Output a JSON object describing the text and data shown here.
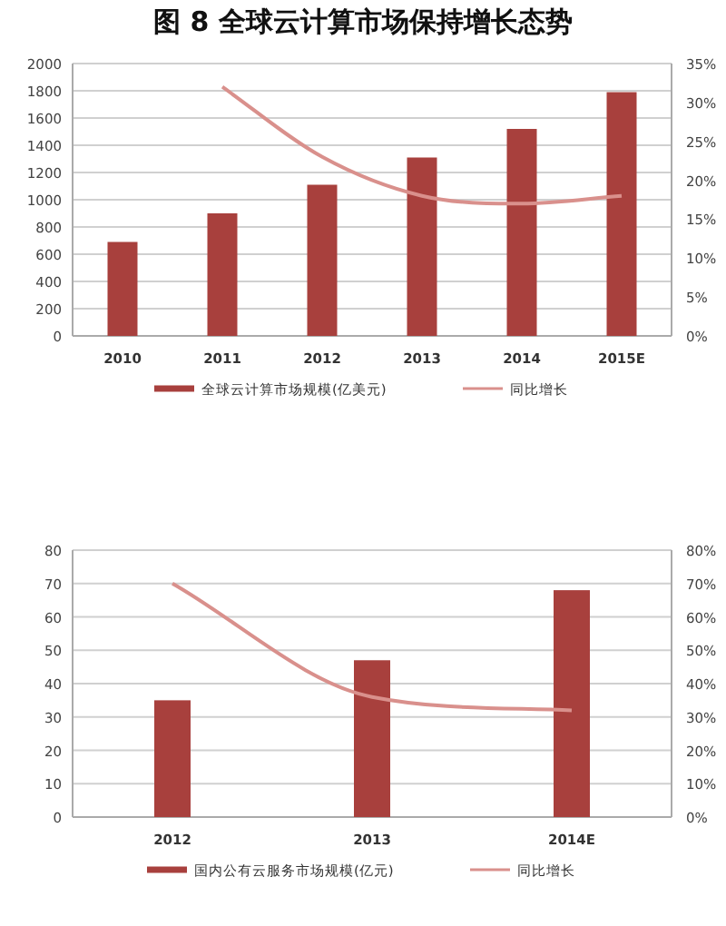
{
  "chart_data": [
    {
      "type": "bar",
      "title": "图 8 全球云计算市场保持增长态势",
      "categories": [
        "2010",
        "2011",
        "2012",
        "2013",
        "2014",
        "2015E"
      ],
      "series": [
        {
          "name": "全球云计算市场规模(亿美元)",
          "color": "#a8403d",
          "values": [
            690,
            900,
            1110,
            1310,
            1520,
            1790
          ]
        },
        {
          "name": "同比增长",
          "type": "line",
          "axis": "y2",
          "color": "#d9908c",
          "values": [
            null,
            32,
            23,
            18,
            17,
            18
          ]
        }
      ],
      "ylim": [
        0,
        2000
      ],
      "yticks": [
        0,
        200,
        400,
        600,
        800,
        1000,
        1200,
        1400,
        1600,
        1800,
        2000
      ],
      "y2lim": [
        0,
        35
      ],
      "y2ticks": [
        {
          "value": 0,
          "label": "0%"
        },
        {
          "value": 5,
          "label": "5%"
        },
        {
          "value": 10,
          "label": "10%"
        },
        {
          "value": 15,
          "label": "15%"
        },
        {
          "value": 20,
          "label": "20%"
        },
        {
          "value": 25,
          "label": "25%"
        },
        {
          "value": 30,
          "label": "30%"
        },
        {
          "value": 35,
          "label": "35%"
        }
      ],
      "grid": "y",
      "legend": "bottom",
      "marker": "none"
    },
    {
      "type": "bar",
      "categories": [
        "2012",
        "2013",
        "2014E"
      ],
      "series": [
        {
          "name": "国内公有云服务市场规模(亿元)",
          "color": "#a8403d",
          "values": [
            35,
            47,
            68
          ]
        },
        {
          "name": "同比增长",
          "type": "line",
          "axis": "y2",
          "color": "#d9908c",
          "values": [
            70,
            36,
            32
          ]
        }
      ],
      "ylim": [
        0,
        80
      ],
      "yticks": [
        0,
        10,
        20,
        30,
        40,
        50,
        60,
        70,
        80
      ],
      "y2lim": [
        0,
        80
      ],
      "y2ticks": [
        {
          "value": 0,
          "label": "0%"
        },
        {
          "value": 10,
          "label": "10%"
        },
        {
          "value": 20,
          "label": "20%"
        },
        {
          "value": 30,
          "label": "30%"
        },
        {
          "value": 40,
          "label": "40%"
        },
        {
          "value": 50,
          "label": "50%"
        },
        {
          "value": 60,
          "label": "60%"
        },
        {
          "value": 70,
          "label": "70%"
        },
        {
          "value": 80,
          "label": "80%"
        }
      ],
      "grid": "y",
      "legend": "bottom",
      "marker": "none"
    }
  ]
}
